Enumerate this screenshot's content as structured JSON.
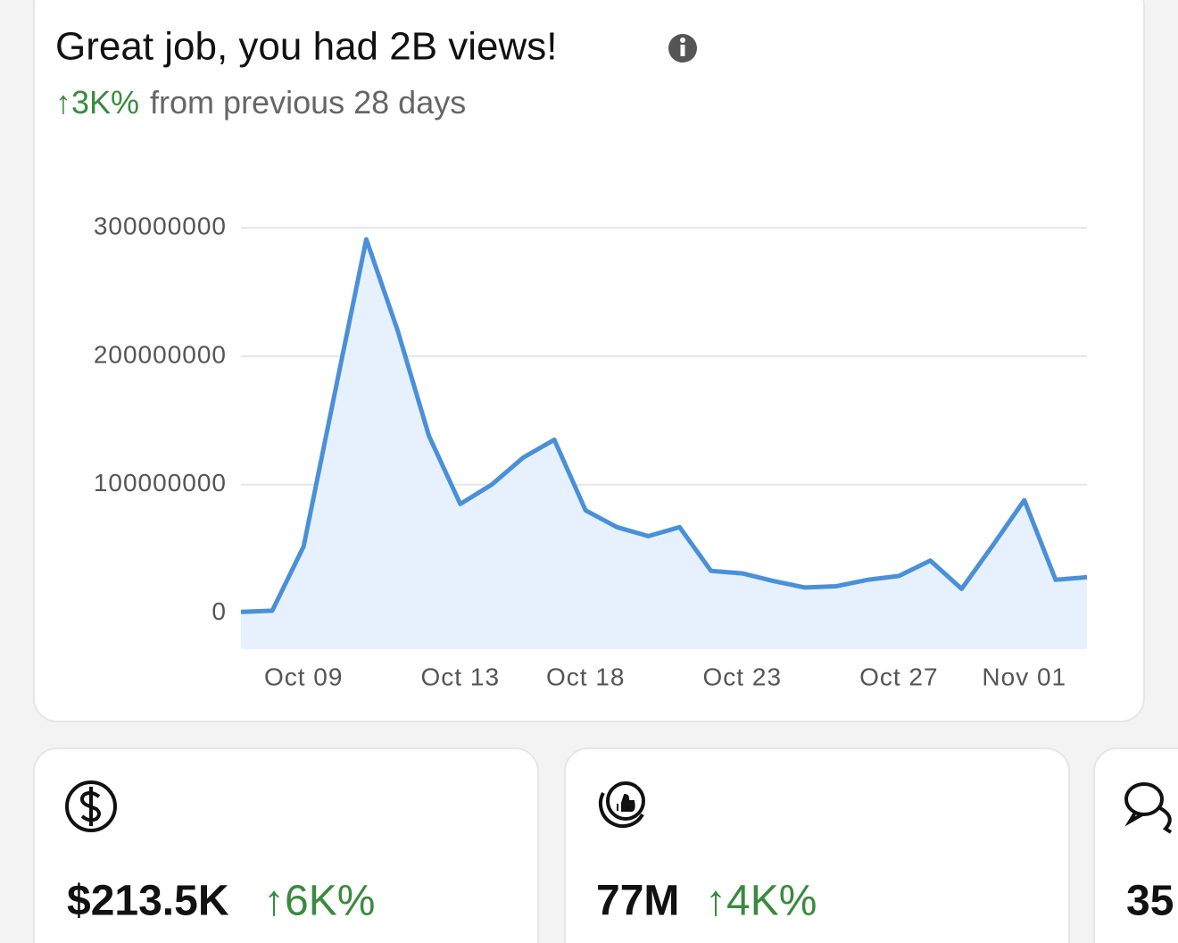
{
  "header": {
    "title": "Great job, you had 2B views!",
    "change": "↑3K%",
    "subtitle": "from previous 28 days"
  },
  "chart_data": {
    "type": "area",
    "categories": [
      null,
      null,
      "Oct 09",
      null,
      null,
      null,
      null,
      "Oct 13",
      null,
      null,
      null,
      "Oct 18",
      null,
      null,
      null,
      null,
      "Oct 23",
      null,
      null,
      null,
      null,
      "Oct 27",
      null,
      null,
      null,
      "Nov 01",
      null,
      null
    ],
    "values": [
      1000000,
      2000000,
      52000000,
      172000000,
      291000000,
      220000000,
      138000000,
      85000000,
      100000000,
      121000000,
      135000000,
      80000000,
      67000000,
      60000000,
      67000000,
      33000000,
      31000000,
      25000000,
      20000000,
      21000000,
      26000000,
      29000000,
      41000000,
      19000000,
      53000000,
      88000000,
      26000000,
      28000000
    ],
    "color": "#4a90d9",
    "fill_color": "#e6f1fd",
    "ylim": [
      -28000000,
      300000000
    ],
    "yticks": [
      0,
      100000000,
      200000000,
      300000000
    ],
    "grid": true
  },
  "cards": [
    {
      "value": "$213.5K",
      "change": "↑6K%"
    },
    {
      "value": "77M",
      "change": "↑4K%"
    },
    {
      "value": "35"
    }
  ]
}
